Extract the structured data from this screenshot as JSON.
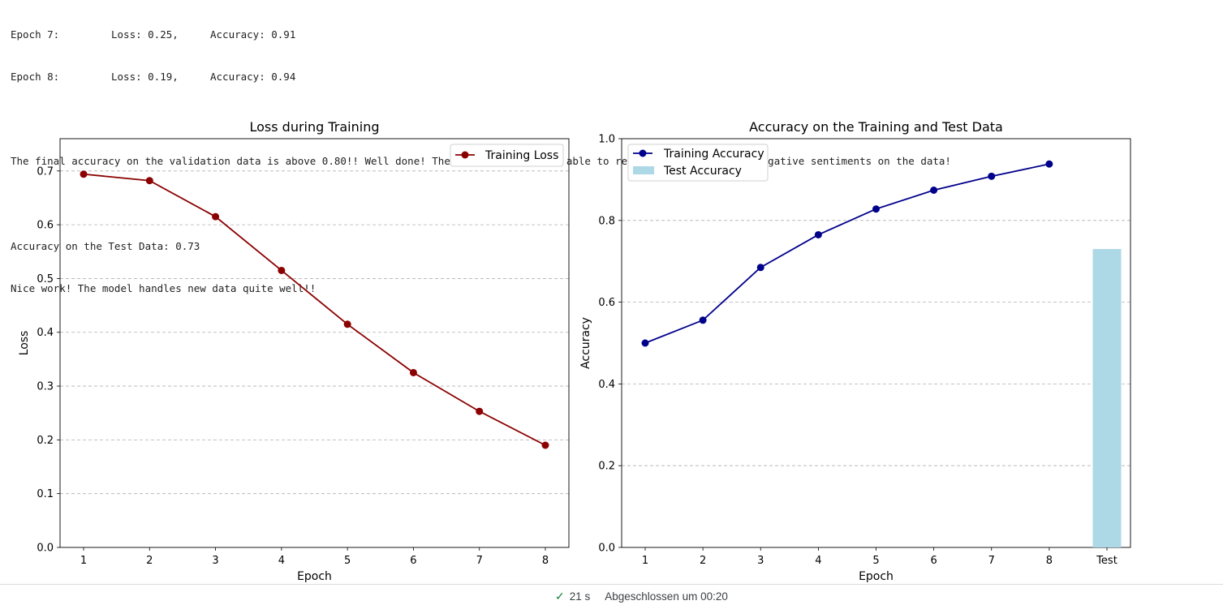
{
  "output": {
    "epoch_lines": [
      {
        "epoch": "Epoch 7:",
        "loss": "Loss: 0.25,",
        "accuracy": "Accuracy: 0.91"
      },
      {
        "epoch": "Epoch 8:",
        "loss": "Loss: 0.19,",
        "accuracy": "Accuracy: 0.94"
      }
    ],
    "validation_message": "The final accuracy on the validation data is above 0.80!! Well done! The model seems to be able to recognise positive and negative sentiments on the data!",
    "test_accuracy_line": "Accuracy on the Test Data: 0.73",
    "test_message": "Nice work! The model handles new data quite well!!"
  },
  "colors": {
    "loss_line": "#8b0000",
    "train_accuracy_line": "#00008b",
    "test_bar": "#add8e6",
    "grid": "#b0b0b0",
    "status_check": "#188038"
  },
  "chart_data": [
    {
      "type": "line",
      "title": "Loss during Training",
      "xlabel": "Epoch",
      "ylabel": "Loss",
      "x": [
        1,
        2,
        3,
        4,
        5,
        6,
        7,
        8
      ],
      "xticks": [
        "1",
        "2",
        "3",
        "4",
        "5",
        "6",
        "7",
        "8"
      ],
      "yticks": [
        "0.0",
        "0.1",
        "0.2",
        "0.3",
        "0.4",
        "0.5",
        "0.6",
        "0.7"
      ],
      "ylim": [
        0,
        0.76
      ],
      "grid": "horizontal dashed",
      "legend_position": "top-right",
      "series": [
        {
          "name": "Training Loss",
          "values": [
            0.694,
            0.682,
            0.615,
            0.515,
            0.415,
            0.325,
            0.253,
            0.19
          ]
        }
      ]
    },
    {
      "type": "line",
      "title": "Accuracy on the Training and Test Data",
      "xlabel": "Epoch",
      "ylabel": "Accuracy",
      "x": [
        1,
        2,
        3,
        4,
        5,
        6,
        7,
        8
      ],
      "xticks": [
        "1",
        "2",
        "3",
        "4",
        "5",
        "6",
        "7",
        "8",
        "Test"
      ],
      "yticks": [
        "0.0",
        "0.2",
        "0.4",
        "0.6",
        "0.8",
        "1.0"
      ],
      "ylim": [
        0,
        1.0
      ],
      "grid": "horizontal dashed",
      "legend_position": "top-left",
      "series": [
        {
          "name": "Training Accuracy",
          "values": [
            0.5,
            0.556,
            0.685,
            0.765,
            0.828,
            0.874,
            0.908,
            0.938
          ]
        }
      ],
      "bars": [
        {
          "name": "Test Accuracy",
          "category": "Test",
          "value": 0.73
        }
      ]
    }
  ],
  "status": {
    "check_icon": "✓",
    "duration": "21 s",
    "completed_text": "Abgeschlossen um 00:20"
  }
}
